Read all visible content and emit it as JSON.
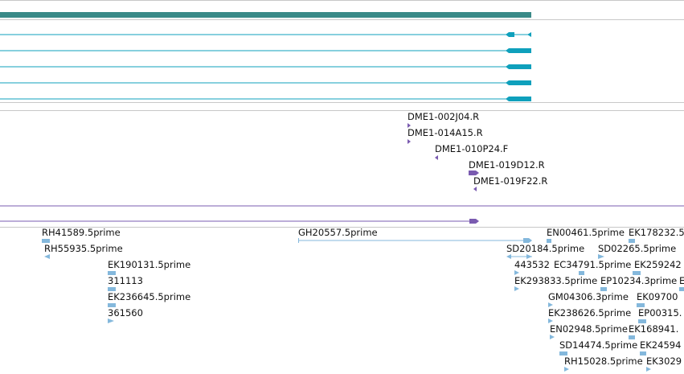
{
  "colors": {
    "gene_track": "#3a8a88",
    "transcript": "#0fa0bc",
    "bac_end": "#7a5bb0",
    "est": "#84b8dc",
    "divider": "#c8c8c8"
  },
  "bac_ends": [
    "DME1-002J04.R",
    "DME1-014A15.R",
    "DME1-010P24.F",
    "DME1-019D12.R",
    "DME1-019F22.R"
  ],
  "ests": [
    "RH41589.5prime",
    "RH55935.5prime",
    "EK190131.5prime",
    "311113",
    "EK236645.5prime",
    "361560",
    "GH20557.5prime",
    "EN00461.5prime",
    "EK178232.5",
    "SD20184.5prime",
    "SD02265.5prime",
    "443532",
    "EC34791.5prime",
    "EK259242",
    "EK293833.5prime",
    "EP10234.3prime",
    "E",
    "GM04306.3prime",
    "EK09700",
    "EK238626.5prime",
    "EP00315.",
    "EN02948.5prime",
    "EK168941.",
    "SD14474.5prime",
    "EK24594",
    "RH15028.5prime",
    "EK3029"
  ]
}
